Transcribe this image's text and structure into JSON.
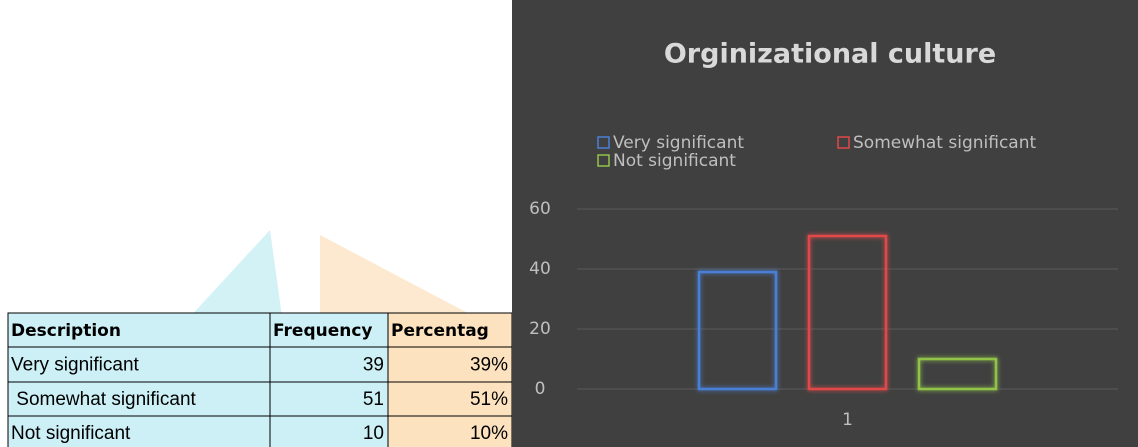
{
  "table": {
    "header": [
      "Description",
      "Frequency",
      "Percentag"
    ],
    "rows": [
      [
        "Very significant",
        39,
        "39%"
      ],
      [
        " Somewhat significant",
        51,
        "51%"
      ],
      [
        "Not significant",
        10,
        "10%"
      ]
    ]
  },
  "chart_data": {
    "type": "bar",
    "title": "Orginizational culture",
    "categories": [
      "1"
    ],
    "series": [
      {
        "name": "Very significant",
        "color": "#4a7fd4",
        "values": [
          39
        ]
      },
      {
        "name": "Somewhat significant",
        "color": "#e04848",
        "values": [
          51
        ]
      },
      {
        "name": "Not significant",
        "color": "#92c34a",
        "values": [
          10
        ]
      }
    ],
    "ylim": [
      0,
      60
    ],
    "yticks": [
      0,
      20,
      40,
      60
    ],
    "grid": true
  }
}
